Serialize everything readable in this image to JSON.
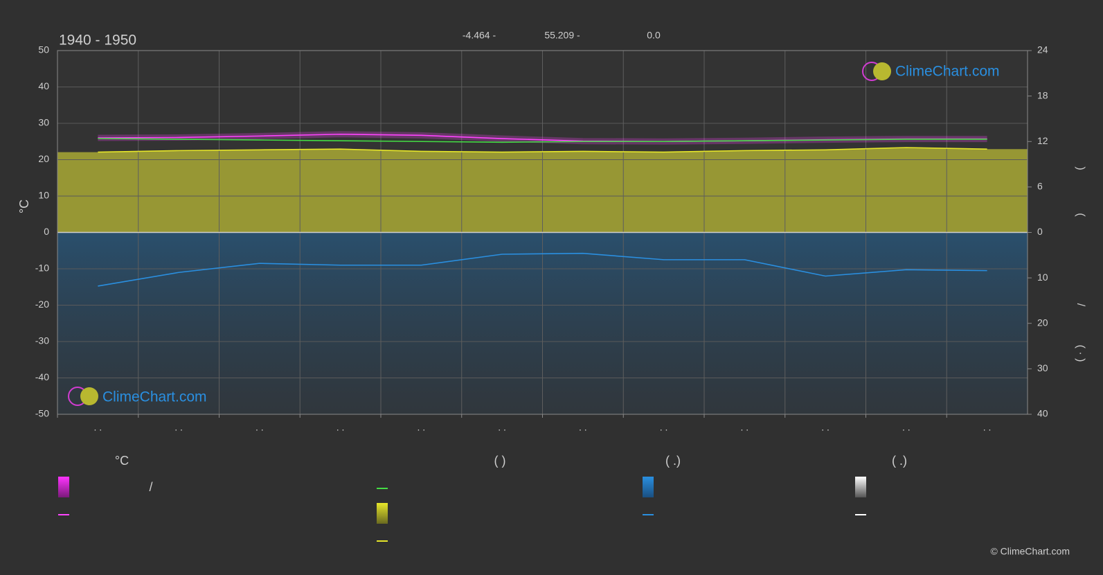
{
  "chart_data": {
    "type": "climate",
    "title": "1940 - 1950",
    "coordinates": [
      "-4.464 -",
      "55.209 -",
      "0.0"
    ],
    "y_label": "°C",
    "right_label_parts": [
      ")",
      "(",
      "/",
      "( · )"
    ],
    "categories": [
      ". .",
      ". .",
      ". .",
      ". .",
      ". .",
      ". .",
      ". .",
      ". .",
      ". .",
      ". .",
      ". .",
      ". ."
    ],
    "ylim": [
      -50,
      50
    ],
    "yticks": [
      50,
      40,
      30,
      20,
      10,
      0,
      -10,
      -20,
      -30,
      -40,
      -50
    ],
    "sun_axis": {
      "lim": [
        0,
        24
      ],
      "ticks": [
        24,
        18,
        12,
        6,
        0
      ]
    },
    "rain_axis": {
      "lim": [
        0,
        40
      ],
      "ticks": [
        10,
        20,
        30,
        40
      ]
    },
    "grid": true,
    "series": [
      {
        "color": "#ff44ff",
        "axis": "y",
        "values": [
          26.0,
          26.1,
          26.5,
          27.0,
          26.7,
          25.8,
          25.1,
          25.0,
          25.2,
          25.5,
          25.7,
          25.7
        ]
      },
      {
        "color": "#44dd44",
        "axis": "sun",
        "values": [
          12.4,
          12.3,
          12.2,
          12.1,
          12.0,
          11.9,
          12.0,
          12.0,
          12.1,
          12.2,
          12.3,
          12.3
        ]
      },
      {
        "color": "#e6e62a",
        "axis": "sun",
        "values": [
          10.6,
          10.8,
          10.9,
          11.0,
          10.7,
          10.6,
          10.7,
          10.6,
          10.8,
          10.9,
          11.2,
          11.0
        ]
      },
      {
        "color": "#2a8fe0",
        "axis": "rain",
        "values": [
          11.8,
          8.8,
          6.8,
          7.2,
          7.2,
          4.8,
          4.6,
          6.0,
          6.0,
          9.6,
          8.2,
          8.4
        ]
      }
    ],
    "legend_headers": [
      "°C",
      "(          )",
      "(   .)",
      "(   .)"
    ],
    "legend_text": "/",
    "watermark": "ClimeChart.com",
    "copyright": "© ClimeChart.com"
  }
}
